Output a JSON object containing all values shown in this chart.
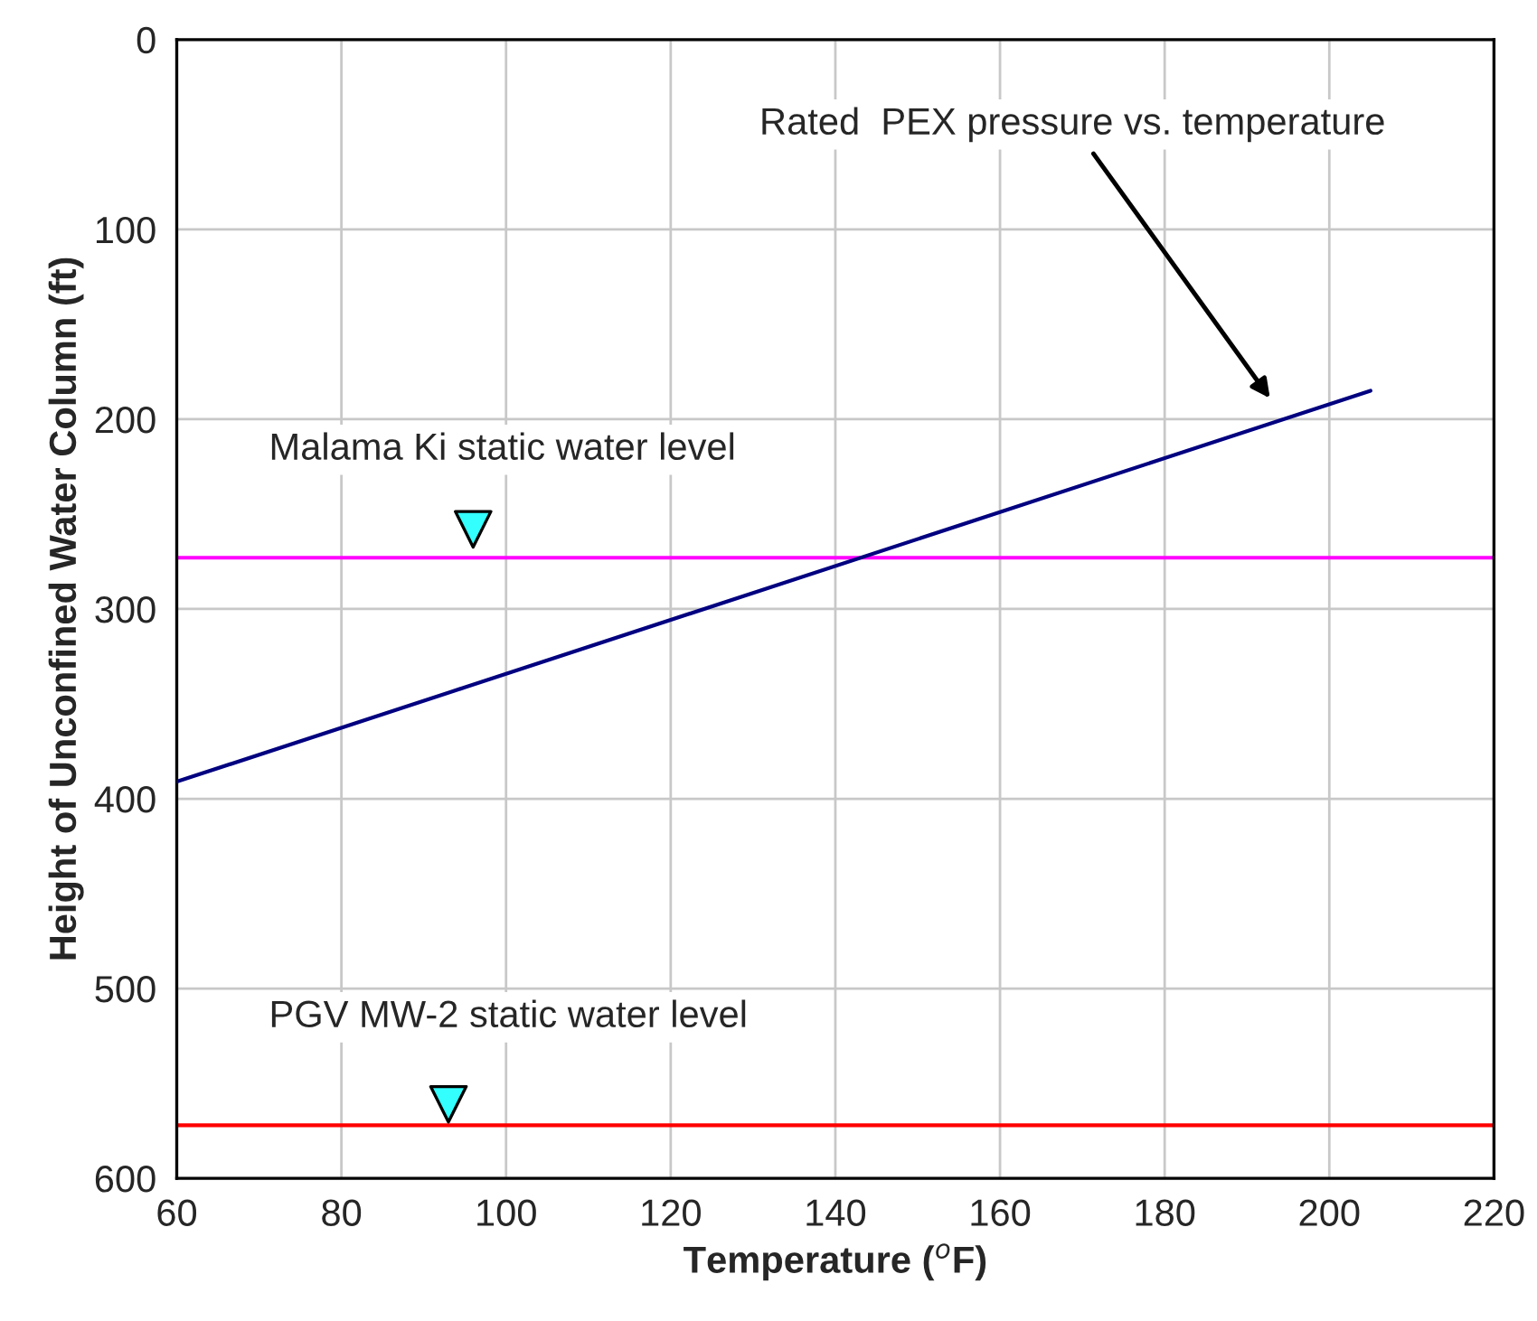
{
  "chart_data": {
    "type": "line",
    "xlabel": "Temperature ($^{o}$F)",
    "ylabel": "Height of Unconfined Water Column (ft)",
    "series": [
      {
        "color": "#000080",
        "x": [
          60,
          205
        ],
        "values": [
          391,
          185
        ]
      },
      {
        "type": "scatter",
        "color": "#33ffff",
        "marker": "triangle",
        "x": [
          96,
          93
        ],
        "values": [
          258,
          561
        ]
      }
    ],
    "ref_lines": [
      {
        "axis": "y",
        "value": 273,
        "label": "Malama Ki static water level",
        "color": "#ff00ff"
      },
      {
        "axis": "y",
        "value": 572,
        "label": "PGV MW-2 static water level",
        "color": "#ff0000"
      }
    ],
    "annotations": [
      "Rated  PEX pressure vs. temperature"
    ],
    "xlim": [
      60,
      220
    ],
    "xticks": [
      60,
      80,
      100,
      120,
      140,
      160,
      180,
      200,
      220
    ],
    "ylim": [
      600,
      0
    ],
    "yticks": [
      0,
      100,
      200,
      300,
      400,
      500,
      600
    ],
    "grid": true,
    "legend": false
  }
}
